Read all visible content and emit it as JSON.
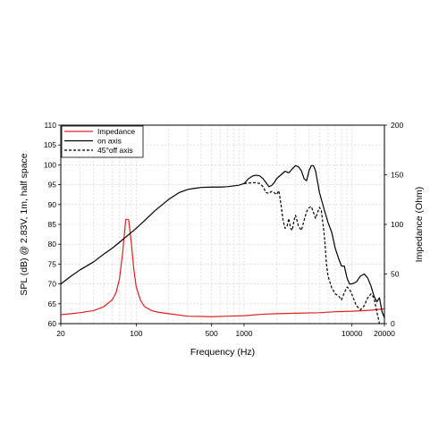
{
  "chart_data": {
    "type": "line",
    "xlabel": "Frequency (Hz)",
    "ylabel_left": "SPL (dB) @ 2.83V, 1m, half space",
    "ylabel_right": "Impedance (Ohm)",
    "x_scale": "log",
    "xlim": [
      20,
      20000
    ],
    "ylim_left": [
      60,
      110
    ],
    "ylim_right": [
      0,
      200
    ],
    "x_ticks": [
      20,
      100,
      500,
      1000,
      10000,
      20000
    ],
    "x_tick_labels": [
      "20",
      "100",
      "500",
      "1000",
      "10000",
      "20000"
    ],
    "y_ticks_left": [
      60,
      65,
      70,
      75,
      80,
      85,
      90,
      95,
      100,
      105,
      110
    ],
    "y_tick_labels_left": [
      "60",
      "65",
      "70",
      "75",
      "80",
      "85",
      "90",
      "95",
      "100",
      "105",
      "110"
    ],
    "y_ticks_right": [
      0,
      50,
      100,
      150,
      200
    ],
    "y_tick_labels_right": [
      "0",
      "50",
      "100",
      "150",
      "200"
    ],
    "grid": true,
    "legend_position": "top-left",
    "series": [
      {
        "name": "Impedance",
        "axis": "right",
        "color": "#e02020",
        "dash": "solid",
        "x": [
          20,
          25,
          30,
          40,
          50,
          60,
          65,
          70,
          75,
          80,
          85,
          90,
          95,
          100,
          110,
          120,
          140,
          160,
          200,
          300,
          500,
          700,
          1000,
          1500,
          2000,
          3000,
          5000,
          7000,
          10000,
          15000,
          20000
        ],
        "y": [
          9,
          10,
          11,
          13,
          17,
          24,
          31,
          45,
          72,
          105,
          105,
          82,
          55,
          37,
          23,
          17,
          13,
          11.5,
          10,
          7.5,
          7,
          7.5,
          8,
          9.5,
          10,
          10.5,
          11,
          12,
          12.5,
          13.5,
          15
        ]
      },
      {
        "name": "on axis",
        "axis": "left",
        "color": "#000000",
        "dash": "solid",
        "x": [
          20,
          25,
          30,
          40,
          50,
          60,
          70,
          80,
          100,
          120,
          150,
          200,
          250,
          300,
          350,
          400,
          500,
          600,
          700,
          800,
          900,
          1000,
          1100,
          1200,
          1300,
          1400,
          1500,
          1600,
          1700,
          1800,
          1900,
          2000,
          2200,
          2400,
          2600,
          2800,
          3000,
          3200,
          3400,
          3600,
          3800,
          4000,
          4200,
          4400,
          4600,
          5000,
          5500,
          6000,
          6500,
          7000,
          7500,
          8000,
          8500,
          9000,
          9500,
          10000,
          11000,
          12000,
          13000,
          14000,
          15000,
          16000,
          17000,
          18000,
          19000,
          20000
        ],
        "y": [
          70,
          72,
          73.5,
          75.5,
          77.5,
          79,
          80.5,
          81.8,
          84,
          86,
          88.5,
          91.3,
          93,
          93.8,
          94.1,
          94.3,
          94.4,
          94.4,
          94.5,
          94.7,
          94.9,
          95.3,
          96.5,
          97.2,
          97.4,
          97.2,
          96.5,
          95.5,
          94.5,
          94.8,
          95.5,
          96.5,
          97.5,
          98.4,
          98,
          99,
          99.8,
          99.5,
          98.5,
          96.5,
          96,
          98.5,
          99.8,
          99.8,
          98.5,
          93,
          89,
          85.5,
          83,
          79,
          76.5,
          74.5,
          74.5,
          71.5,
          70,
          70,
          70.5,
          72,
          72.5,
          71.5,
          69.5,
          67,
          65.5,
          66.5,
          63,
          61.5
        ]
      },
      {
        "name": "45°off axis",
        "axis": "left",
        "color": "#000000",
        "dash": "dashed",
        "x": [
          1000,
          1100,
          1200,
          1300,
          1400,
          1500,
          1600,
          1700,
          1800,
          1900,
          2000,
          2100,
          2200,
          2300,
          2400,
          2500,
          2600,
          2700,
          2800,
          2900,
          3000,
          3200,
          3400,
          3600,
          3800,
          4000,
          4200,
          4400,
          4600,
          4800,
          5000,
          5200,
          5400,
          5600,
          5800,
          6000,
          6500,
          7000,
          7500,
          8000,
          8500,
          9000,
          9500,
          10000,
          11000,
          12000,
          13000,
          14000,
          15000,
          16000,
          17000,
          18000
        ],
        "y": [
          95.3,
          95.4,
          95.5,
          95.5,
          95.3,
          94.5,
          93,
          92.8,
          93.3,
          93,
          92.5,
          93.5,
          90,
          86,
          84,
          84.5,
          86.5,
          84,
          83.5,
          86,
          87.3,
          84.5,
          83.5,
          86,
          88.2,
          89.2,
          89.5,
          88,
          86.5,
          88,
          89.3,
          88.5,
          85,
          81,
          75,
          72,
          69,
          67.5,
          67,
          66,
          67.8,
          69.2,
          68.7,
          67.3,
          64.5,
          63.5,
          64.5,
          66.5,
          67.5,
          66.5,
          63,
          60
        ]
      }
    ]
  }
}
